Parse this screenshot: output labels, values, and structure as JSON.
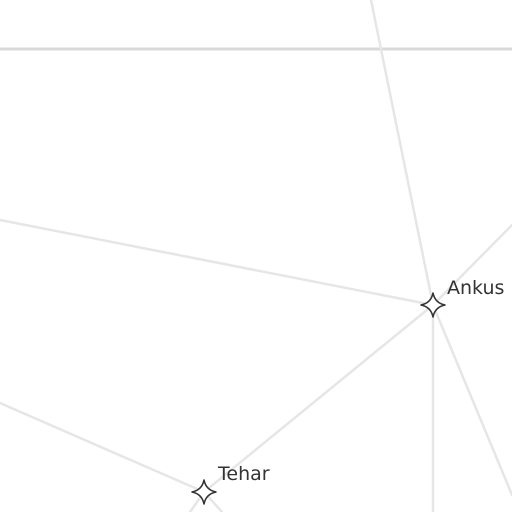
{
  "map": {
    "colors": {
      "background": "#ffffff",
      "road": "#e6e6e6",
      "road_major": "#d9d9d9",
      "marker_stroke": "#333333",
      "marker_fill": "#ffffff",
      "label": "#333333"
    },
    "places": [
      {
        "name": "Ankus",
        "marker_icon": "four-point-star-icon"
      },
      {
        "name": "Tehar",
        "marker_icon": "four-point-star-icon"
      }
    ]
  }
}
